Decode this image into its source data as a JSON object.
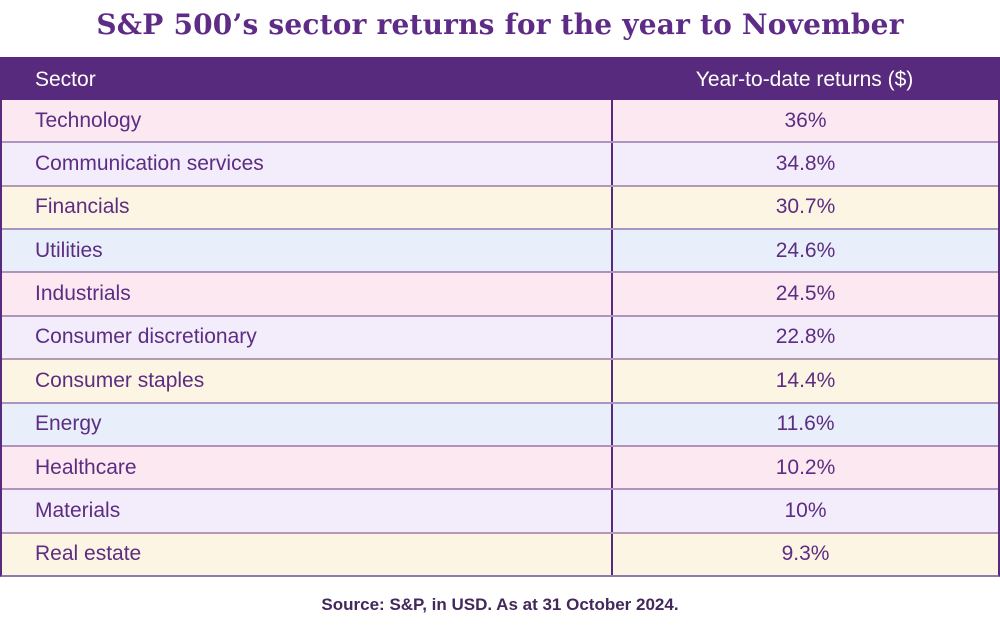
{
  "title": "S&P 500’s sector returns for the year to November",
  "table": {
    "header": {
      "sector_label": "Sector",
      "returns_label": "Year-to-date returns ($)"
    },
    "rows": [
      {
        "sector": "Technology",
        "value": "36%"
      },
      {
        "sector": "Communication services",
        "value": "34.8%"
      },
      {
        "sector": "Financials",
        "value": "30.7%"
      },
      {
        "sector": "Utilities",
        "value": "24.6%"
      },
      {
        "sector": "Industrials",
        "value": "24.5%"
      },
      {
        "sector": "Consumer discretionary",
        "value": "22.8%"
      },
      {
        "sector": "Consumer staples",
        "value": "14.4%"
      },
      {
        "sector": "Energy",
        "value": "11.6%"
      },
      {
        "sector": "Healthcare",
        "value": "10.2%"
      },
      {
        "sector": "Materials",
        "value": "10%"
      },
      {
        "sector": "Real estate",
        "value": "9.3%"
      }
    ]
  },
  "footer": {
    "source": "Source: S&P, in USD. As at 31 October 2024."
  },
  "colors": {
    "header_bg": "#582a7d",
    "frame": "#582a7d",
    "title_text": "#5e2c87",
    "cell_text": "#5c2d82",
    "source_text": "#43285c",
    "separator": "rgba(88,42,125,0.45)",
    "bottom_border": "#907aa9",
    "row_pink": "#fce8f1",
    "row_lavender": "#f3ecfa",
    "row_cream": "#fdf5e4",
    "row_blue": "#e8effb"
  },
  "chart_data": {
    "type": "table",
    "title": "S&P 500’s sector returns for the year to November",
    "columns": [
      "Sector",
      "Year-to-date returns ($)"
    ],
    "rows": [
      [
        "Technology",
        "36%"
      ],
      [
        "Communication services",
        "34.8%"
      ],
      [
        "Financials",
        "30.7%"
      ],
      [
        "Utilities",
        "24.6%"
      ],
      [
        "Industrials",
        "24.5%"
      ],
      [
        "Consumer discretionary",
        "22.8%"
      ],
      [
        "Consumer staples",
        "14.4%"
      ],
      [
        "Energy",
        "11.6%"
      ],
      [
        "Healthcare",
        "10.2%"
      ],
      [
        "Materials",
        "10%"
      ],
      [
        "Real estate",
        "9.3%"
      ]
    ],
    "values_numeric_percent": [
      36,
      34.8,
      30.7,
      24.6,
      24.5,
      22.8,
      14.4,
      11.6,
      10.2,
      10,
      9.3
    ],
    "source": "Source: S&P, in USD. As at 31 October 2024."
  }
}
